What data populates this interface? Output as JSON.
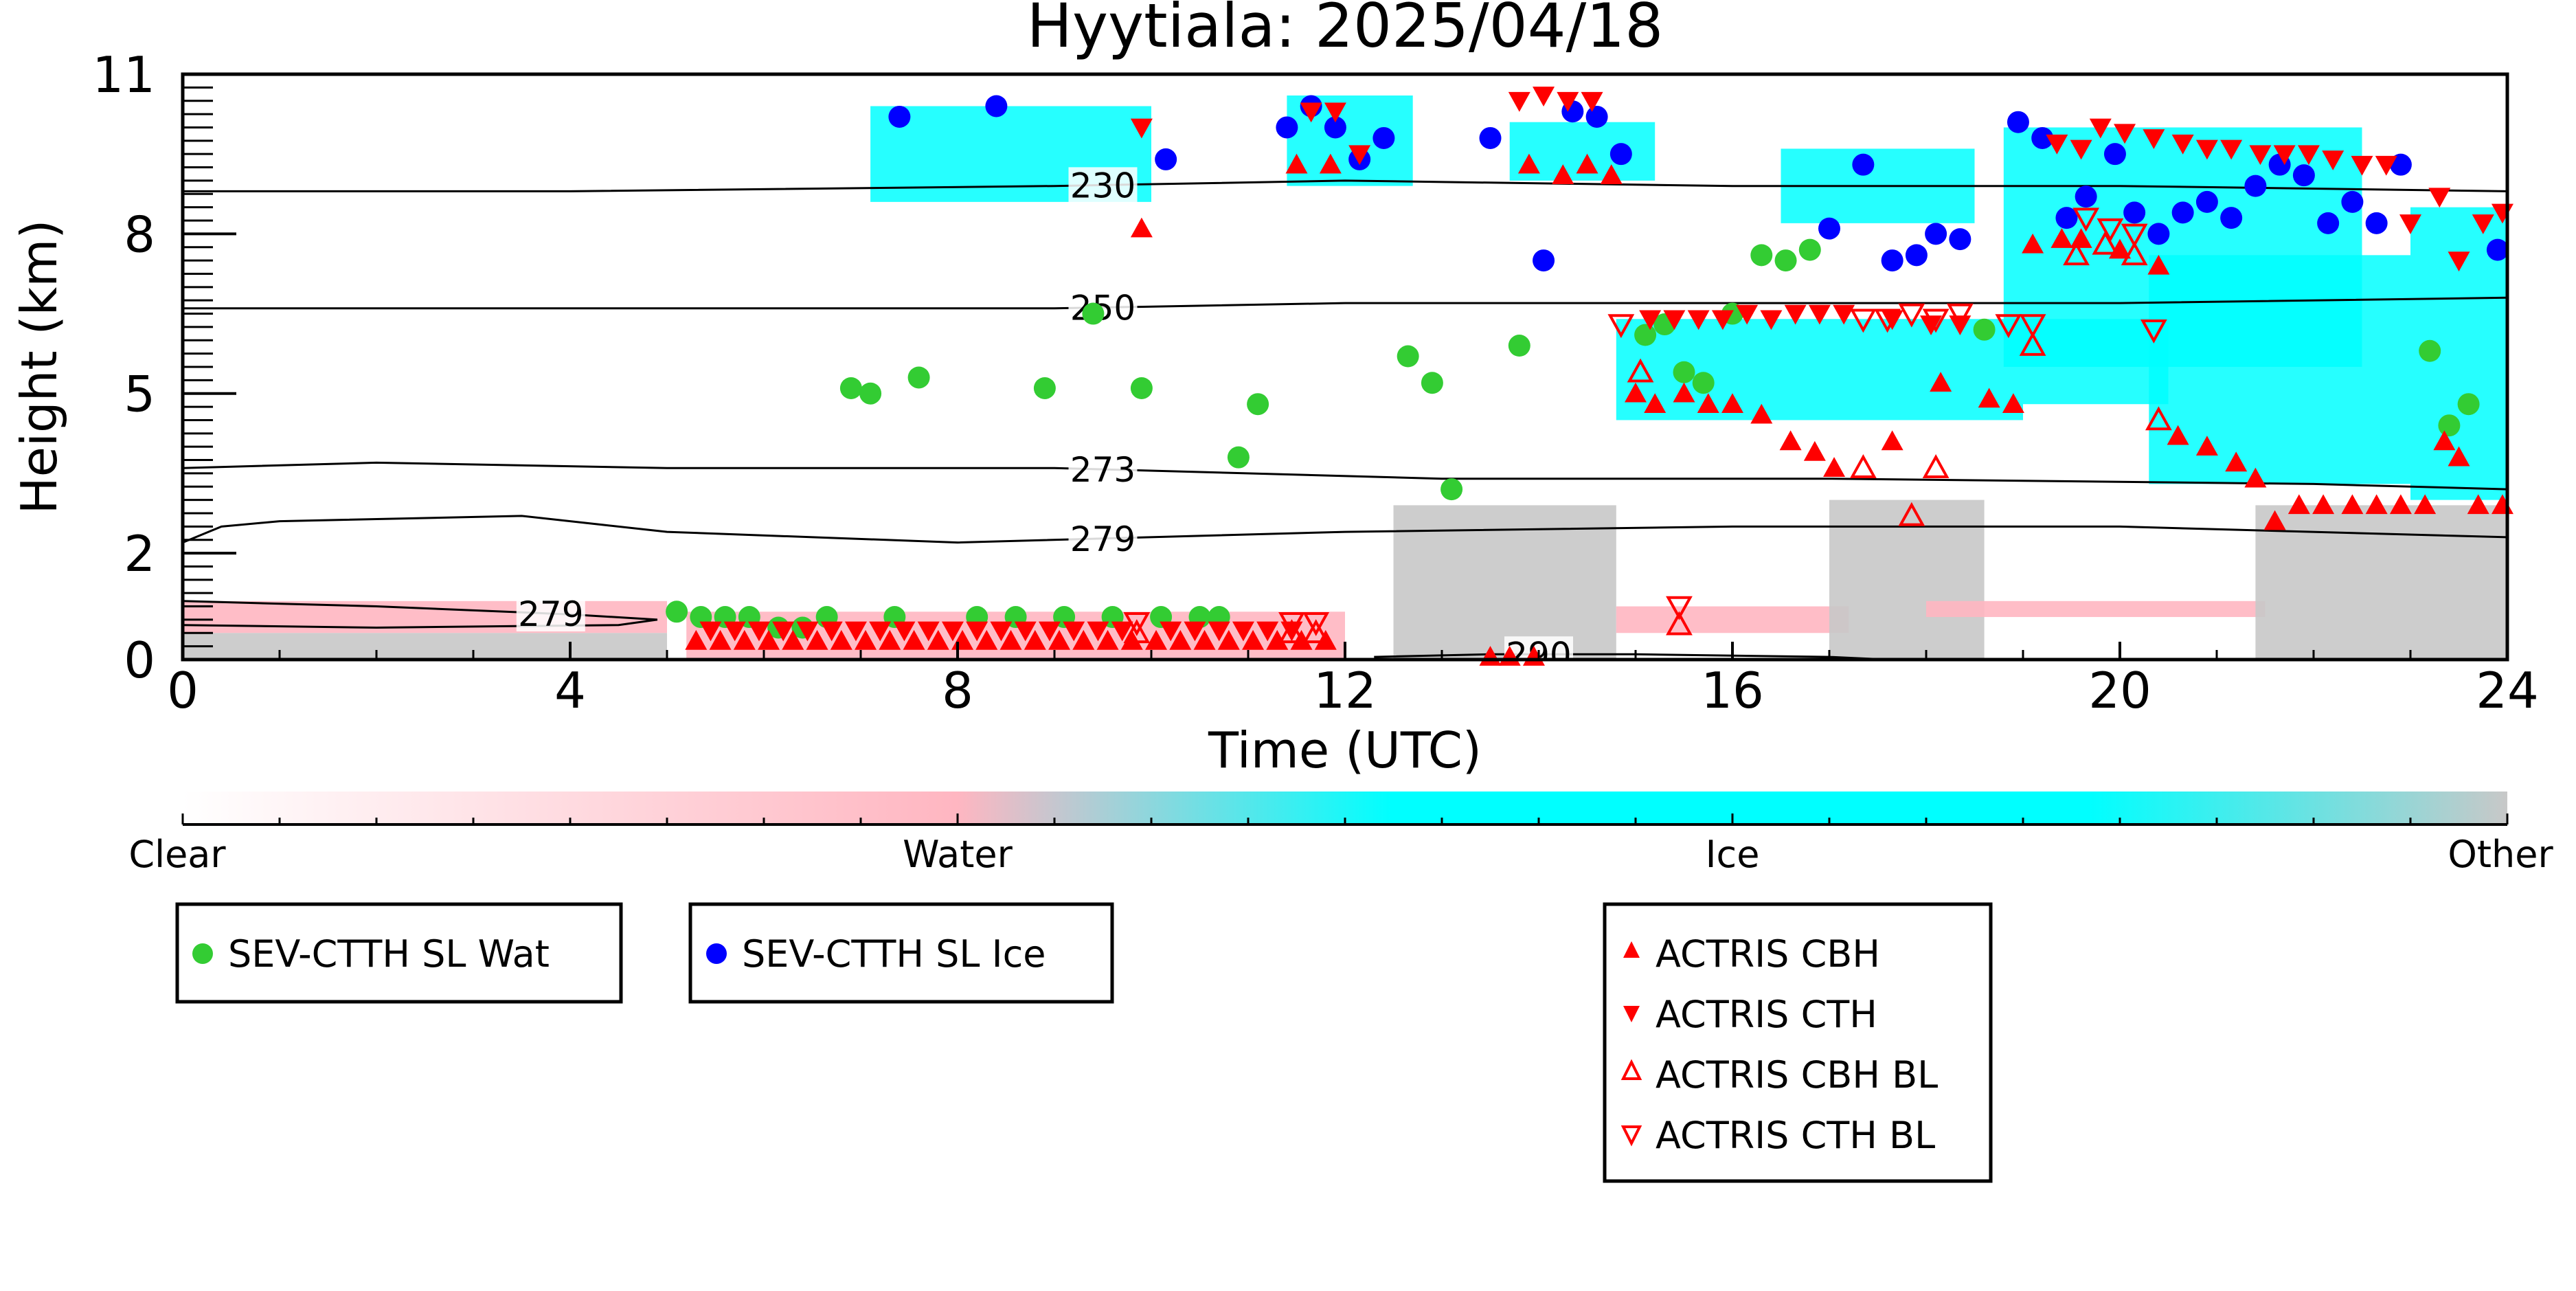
{
  "chart_data": {
    "type": "scatter",
    "title": "Hyytiala: 2025/04/18",
    "xlabel": "Time (UTC)",
    "ylabel": "Height (km)",
    "xlim": [
      0,
      24
    ],
    "ylim": [
      0,
      11
    ],
    "x_ticks": [
      0,
      4,
      8,
      12,
      16,
      20,
      24
    ],
    "x_tick_labels": [
      "0",
      "4",
      "8",
      "12",
      "16",
      "20",
      "24"
    ],
    "y_ticks": [
      0,
      2,
      5,
      8,
      11
    ],
    "y_tick_labels": [
      "0",
      "2",
      "5",
      "8",
      "11"
    ],
    "grid": false,
    "background_field": {
      "description_colors": {
        "clear": "#ffffff",
        "water": "#ffb6c1",
        "ice": "#00ffff",
        "other": "#c8c8c8"
      },
      "regions": [
        {
          "class": "water",
          "x": [
            0,
            5
          ],
          "y": [
            0.5,
            1.1
          ]
        },
        {
          "class": "other",
          "x": [
            0,
            5
          ],
          "y": [
            0,
            0.5
          ]
        },
        {
          "class": "water",
          "x": [
            5.2,
            12
          ],
          "y": [
            0,
            0.9
          ]
        },
        {
          "class": "other",
          "x": [
            12.5,
            14.8
          ],
          "y": [
            0,
            2.9
          ]
        },
        {
          "class": "water",
          "x": [
            14.8,
            17.2
          ],
          "y": [
            0.5,
            1.0
          ]
        },
        {
          "class": "other",
          "x": [
            17,
            18.6
          ],
          "y": [
            0,
            3.0
          ]
        },
        {
          "class": "water",
          "x": [
            18,
            21.5
          ],
          "y": [
            0.8,
            1.1
          ]
        },
        {
          "class": "other",
          "x": [
            21.4,
            24
          ],
          "y": [
            0,
            2.9
          ]
        },
        {
          "class": "ice",
          "x": [
            7.1,
            10
          ],
          "y": [
            8.6,
            10.4
          ]
        },
        {
          "class": "ice",
          "x": [
            11.4,
            12.7
          ],
          "y": [
            8.9,
            10.6
          ]
        },
        {
          "class": "ice",
          "x": [
            13.7,
            15.2
          ],
          "y": [
            9.0,
            10.1
          ]
        },
        {
          "class": "ice",
          "x": [
            14.8,
            19
          ],
          "y": [
            4.5,
            6.4
          ]
        },
        {
          "class": "ice",
          "x": [
            16.5,
            18.5
          ],
          "y": [
            8.2,
            9.6
          ]
        },
        {
          "class": "ice",
          "x": [
            19,
            20.5
          ],
          "y": [
            4.8,
            6.4
          ]
        },
        {
          "class": "ice",
          "x": [
            18.8,
            22.5
          ],
          "y": [
            5.5,
            10.0
          ]
        },
        {
          "class": "ice",
          "x": [
            20.3,
            23
          ],
          "y": [
            3.3,
            7.6
          ]
        },
        {
          "class": "ice",
          "x": [
            23,
            24
          ],
          "y": [
            3.0,
            8.5
          ]
        }
      ]
    },
    "contours": [
      {
        "label": "230",
        "label_x": 9.5,
        "x": [
          0,
          4,
          9,
          12,
          16,
          20,
          24
        ],
        "y": [
          8.8,
          8.8,
          8.9,
          9.0,
          8.9,
          8.9,
          8.8
        ]
      },
      {
        "label": "250",
        "label_x": 9.5,
        "x": [
          0,
          4,
          9,
          12,
          16,
          20,
          24
        ],
        "y": [
          6.6,
          6.6,
          6.6,
          6.7,
          6.7,
          6.7,
          6.8
        ]
      },
      {
        "label": "273",
        "label_x": 9.5,
        "x": [
          0,
          2,
          5,
          9,
          13,
          17,
          22,
          24
        ],
        "y": [
          3.6,
          3.7,
          3.6,
          3.6,
          3.4,
          3.4,
          3.3,
          3.2
        ]
      },
      {
        "label": "279",
        "label_x": 9.5,
        "x": [
          0,
          0.4,
          1,
          3.5,
          5,
          8,
          12,
          16,
          20,
          24
        ],
        "y": [
          2.2,
          2.5,
          2.6,
          2.7,
          2.4,
          2.2,
          2.4,
          2.5,
          2.5,
          2.3
        ]
      },
      {
        "label": "279",
        "label_x": 3.8,
        "x": [
          0,
          2,
          4,
          4.9,
          4.5,
          2,
          0
        ],
        "y": [
          1.1,
          1.0,
          0.85,
          0.75,
          0.65,
          0.6,
          0.65
        ]
      },
      {
        "label": "290",
        "label_x": 14.0,
        "x": [
          12.3,
          13.5,
          15,
          17,
          17.6
        ],
        "y": [
          0.05,
          0.1,
          0.1,
          0.05,
          0.0
        ]
      }
    ],
    "series": [
      {
        "name": "SEV-CTTH SL Wat",
        "marker": "circle",
        "color": "#33cc33",
        "x": [
          5.1,
          5.35,
          5.6,
          5.85,
          6.15,
          6.4,
          6.65,
          6.9,
          7.1,
          7.35,
          7.6,
          8.2,
          8.6,
          8.9,
          9.1,
          9.4,
          9.6,
          9.9,
          10.1,
          10.5,
          10.7,
          10.9,
          11.1,
          12.65,
          12.9,
          13.1,
          13.8,
          15.1,
          15.3,
          15.5,
          15.7,
          16.0,
          16.3,
          16.55,
          16.8,
          18.6,
          23.2,
          23.4,
          23.6
        ],
        "y": [
          0.9,
          0.8,
          0.8,
          0.8,
          0.6,
          0.6,
          0.8,
          5.1,
          5.0,
          0.8,
          5.3,
          0.8,
          0.8,
          5.1,
          0.8,
          6.5,
          0.8,
          5.1,
          0.8,
          0.8,
          0.8,
          3.8,
          4.8,
          5.7,
          5.2,
          3.2,
          5.9,
          6.1,
          6.3,
          5.4,
          5.2,
          6.5,
          7.6,
          7.5,
          7.7,
          6.2,
          5.8,
          4.4,
          4.8
        ]
      },
      {
        "name": "SEV-CTTH SL Ice",
        "marker": "circle",
        "color": "#0000ff",
        "x": [
          7.4,
          8.4,
          10.15,
          11.4,
          11.65,
          11.9,
          12.15,
          12.4,
          13.5,
          14.05,
          14.35,
          14.6,
          14.85,
          17.0,
          17.35,
          17.65,
          17.9,
          18.1,
          18.35,
          18.95,
          19.2,
          19.45,
          19.65,
          19.95,
          20.15,
          20.4,
          20.65,
          20.9,
          21.15,
          21.4,
          21.65,
          21.9,
          22.15,
          22.4,
          22.65,
          22.9,
          23.9
        ],
        "y": [
          10.2,
          10.4,
          9.4,
          10.0,
          10.4,
          10.0,
          9.4,
          9.8,
          9.8,
          7.5,
          10.3,
          10.2,
          9.5,
          8.1,
          9.3,
          7.5,
          7.6,
          8.0,
          7.9,
          10.1,
          9.8,
          8.3,
          8.7,
          9.5,
          8.4,
          8.0,
          8.4,
          8.6,
          8.3,
          8.9,
          9.3,
          9.1,
          8.2,
          8.6,
          8.2,
          9.3,
          7.7
        ]
      },
      {
        "name": "ACTRIS CBH",
        "marker": "triangle-up",
        "color": "#ff0000",
        "x": [
          9.9,
          11.5,
          11.85,
          13.9,
          14.25,
          14.5,
          14.75,
          15.0,
          15.2,
          15.5,
          15.75,
          16.0,
          16.3,
          16.6,
          16.85,
          17.05,
          17.65,
          18.15,
          18.65,
          18.9,
          19.1,
          19.4,
          19.6,
          20.0,
          20.4,
          20.6,
          20.9,
          21.2,
          21.4,
          21.6,
          21.85,
          22.1,
          22.4,
          22.65,
          22.9,
          23.15,
          23.35,
          23.5,
          23.7,
          23.95
        ],
        "y": [
          8.1,
          9.3,
          9.3,
          9.3,
          9.1,
          9.3,
          9.1,
          5.0,
          4.8,
          5.0,
          4.8,
          4.8,
          4.6,
          4.1,
          3.9,
          3.6,
          4.1,
          5.2,
          4.9,
          4.8,
          7.8,
          7.9,
          7.9,
          7.7,
          7.4,
          4.2,
          4.0,
          3.7,
          3.4,
          2.6,
          2.9,
          2.9,
          2.9,
          2.9,
          2.9,
          2.9,
          4.1,
          3.8,
          2.9,
          2.9
        ],
        "extra_boundary_layer_markers_note": "dense row near 0.5 km between 5.2 and 11.9 h",
        "bl_row_x": [
          5.3,
          5.55,
          5.8,
          6.05,
          6.3,
          6.55,
          6.8,
          7.05,
          7.3,
          7.55,
          7.8,
          8.05,
          8.3,
          8.55,
          8.8,
          9.05,
          9.3,
          9.55,
          9.8,
          10.05,
          10.3,
          10.55,
          10.8,
          11.05,
          11.3,
          11.55,
          11.8,
          13.5,
          13.7,
          13.95
        ],
        "bl_row_y": [
          0.35,
          0.35,
          0.35,
          0.35,
          0.35,
          0.35,
          0.35,
          0.35,
          0.35,
          0.35,
          0.35,
          0.35,
          0.35,
          0.35,
          0.35,
          0.35,
          0.35,
          0.35,
          0.35,
          0.35,
          0.35,
          0.35,
          0.35,
          0.35,
          0.35,
          0.35,
          0.35,
          0.05,
          0.05,
          0.05
        ]
      },
      {
        "name": "ACTRIS CTH",
        "marker": "triangle-down",
        "color": "#ff0000",
        "x": [
          9.9,
          11.65,
          11.9,
          12.15,
          13.8,
          14.05,
          14.3,
          14.55,
          15.15,
          15.4,
          15.65,
          15.9,
          16.15,
          16.4,
          16.65,
          16.9,
          17.15,
          17.65,
          18.05,
          18.35,
          19.35,
          19.6,
          19.8,
          20.05,
          20.35,
          20.65,
          20.9,
          21.15,
          21.45,
          21.7,
          21.95,
          22.2,
          22.5,
          22.75,
          23.0,
          23.3,
          23.5,
          23.75,
          23.95
        ],
        "y": [
          10.0,
          10.3,
          10.3,
          9.5,
          10.5,
          10.6,
          10.5,
          10.5,
          6.4,
          6.4,
          6.4,
          6.4,
          6.5,
          6.4,
          6.5,
          6.5,
          6.5,
          6.4,
          6.3,
          6.3,
          9.7,
          9.6,
          10.0,
          9.9,
          9.8,
          9.7,
          9.6,
          9.6,
          9.5,
          9.5,
          9.5,
          9.4,
          9.3,
          9.3,
          8.2,
          8.7,
          7.5,
          8.2,
          8.4
        ],
        "bl_row_x": [
          5.45,
          5.7,
          5.95,
          6.2,
          6.45,
          6.7,
          6.95,
          7.2,
          7.45,
          7.7,
          7.95,
          8.2,
          8.45,
          8.7,
          8.95,
          9.2,
          9.45,
          9.7,
          10.2,
          10.45,
          10.7,
          10.95,
          11.2,
          11.45
        ],
        "bl_row_y": [
          0.55,
          0.55,
          0.55,
          0.55,
          0.55,
          0.55,
          0.55,
          0.55,
          0.55,
          0.55,
          0.55,
          0.55,
          0.55,
          0.55,
          0.55,
          0.55,
          0.55,
          0.55,
          0.55,
          0.55,
          0.55,
          0.55,
          0.55,
          0.55
        ]
      },
      {
        "name": "ACTRIS CBH BL",
        "marker": "triangle-up-open",
        "color": "#ff0000",
        "x": [
          9.85,
          11.45,
          11.7,
          15.05,
          15.45,
          17.35,
          17.85,
          18.1,
          19.1,
          19.55,
          19.85,
          20.15,
          20.4
        ],
        "y": [
          0.5,
          0.5,
          0.5,
          5.4,
          0.65,
          3.6,
          2.7,
          3.6,
          5.9,
          7.6,
          7.8,
          7.6,
          4.5
        ]
      },
      {
        "name": "ACTRIS CTH BL",
        "marker": "triangle-down-open",
        "color": "#ff0000",
        "x": [
          9.85,
          11.45,
          11.7,
          14.85,
          15.45,
          17.35,
          17.6,
          17.85,
          18.1,
          18.35,
          18.85,
          19.1,
          19.65,
          19.9,
          20.15,
          20.35
        ],
        "y": [
          0.7,
          0.7,
          0.7,
          6.3,
          1.0,
          6.4,
          6.4,
          6.5,
          6.4,
          6.5,
          6.3,
          6.3,
          8.3,
          8.1,
          8.0,
          6.2
        ]
      }
    ],
    "colorbar": {
      "labels": [
        "Clear",
        "Water",
        "Ice",
        "Other"
      ],
      "colors": [
        "#ffffff",
        "#ffb6c1",
        "#00ffff",
        "#c8c8c8"
      ]
    },
    "legend_placement": "below"
  }
}
